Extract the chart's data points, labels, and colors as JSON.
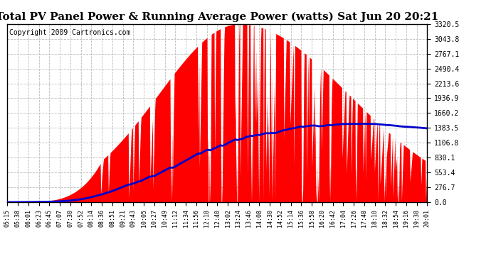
{
  "title": "Total PV Panel Power & Running Average Power (watts) Sat Jun 20 20:21",
  "copyright": "Copyright 2009 Cartronics.com",
  "bg_color": "#ffffff",
  "plot_bg_color": "#ffffff",
  "y_max": 3320.5,
  "y_min": 0.0,
  "y_ticks": [
    0.0,
    276.7,
    553.4,
    830.1,
    1106.8,
    1383.5,
    1660.2,
    1936.9,
    2213.6,
    2490.4,
    2767.1,
    3043.8,
    3320.5
  ],
  "x_labels": [
    "05:15",
    "05:38",
    "06:01",
    "06:23",
    "06:45",
    "07:07",
    "07:30",
    "07:52",
    "08:14",
    "08:36",
    "08:51",
    "09:21",
    "09:43",
    "10:05",
    "10:27",
    "10:49",
    "11:12",
    "11:34",
    "11:56",
    "12:18",
    "12:40",
    "13:02",
    "13:24",
    "13:46",
    "14:08",
    "14:30",
    "14:52",
    "15:14",
    "15:36",
    "15:58",
    "16:20",
    "16:42",
    "17:04",
    "17:26",
    "17:48",
    "18:10",
    "18:32",
    "18:54",
    "19:16",
    "19:38",
    "20:01"
  ],
  "fill_color": "#ff0000",
  "line_color": "#0000cc",
  "grid_color": "#bbbbbb",
  "title_color": "#000000",
  "title_fontsize": 11,
  "copyright_fontsize": 7
}
